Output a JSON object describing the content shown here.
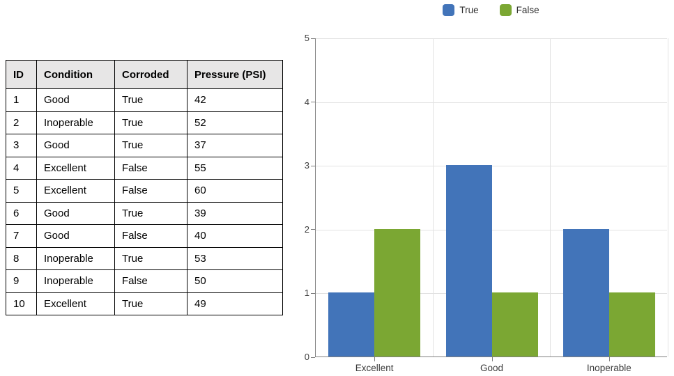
{
  "table": {
    "headers": [
      "ID",
      "Condition",
      "Corroded",
      "Pressure (PSI)"
    ],
    "rows": [
      [
        "1",
        "Good",
        "True",
        "42"
      ],
      [
        "2",
        "Inoperable",
        "True",
        "52"
      ],
      [
        "3",
        "Good",
        "True",
        "37"
      ],
      [
        "4",
        "Excellent",
        "False",
        "55"
      ],
      [
        "5",
        "Excellent",
        "False",
        "60"
      ],
      [
        "6",
        "Good",
        "True",
        "39"
      ],
      [
        "7",
        "Good",
        "False",
        "40"
      ],
      [
        "8",
        "Inoperable",
        "True",
        "53"
      ],
      [
        "9",
        "Inoperable",
        "False",
        "50"
      ],
      [
        "10",
        "Excellent",
        "True",
        "49"
      ]
    ],
    "header_bg": "#E7E6E6"
  },
  "chart_data": {
    "type": "bar",
    "categories": [
      "Excellent",
      "Good",
      "Inoperable"
    ],
    "series": [
      {
        "name": "True",
        "color": "#4274B9",
        "values": [
          1,
          3,
          2
        ]
      },
      {
        "name": "False",
        "color": "#7BA733",
        "values": [
          2,
          1,
          1
        ]
      }
    ],
    "title": "",
    "xlabel": "",
    "ylabel": "",
    "ylim": [
      0,
      5
    ],
    "yticks": [
      0,
      1,
      2,
      3,
      4,
      5
    ],
    "grid": true,
    "legend_position": "top",
    "gridline_color": "#E2E2E2",
    "axis_color": "#808080"
  }
}
